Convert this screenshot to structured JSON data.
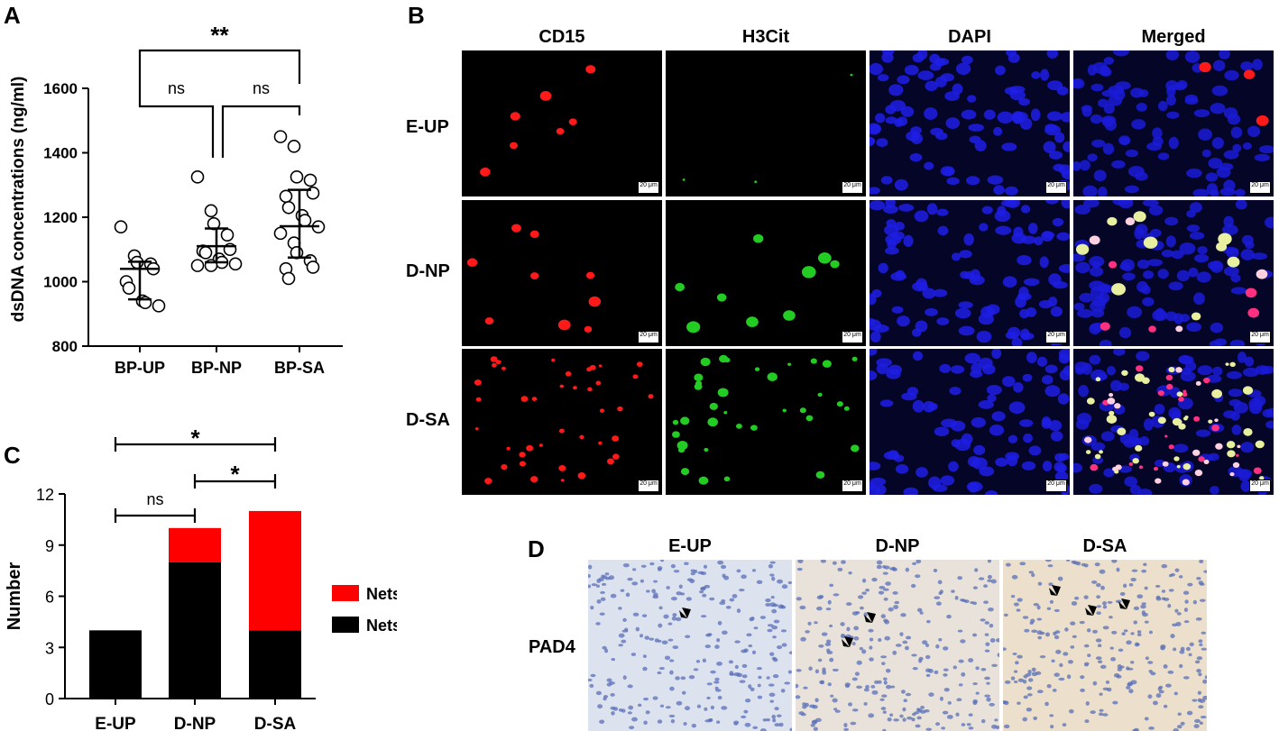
{
  "panels": {
    "A": "A",
    "B": "B",
    "C": "C",
    "D": "D"
  },
  "panelA": {
    "chart_data": {
      "type": "scatter",
      "categories": [
        "BP-UP",
        "BP-NP",
        "BP-SA"
      ],
      "ylabel": "dsDNA concentrations (ng/ml)",
      "ylim": [
        800,
        1700
      ],
      "yticks": [
        800,
        1000,
        1200,
        1400,
        1600
      ],
      "series": [
        {
          "category": "BP-UP",
          "values": [
            1170,
            1080,
            1060,
            1055,
            1040,
            1000,
            980,
            940,
            935,
            925
          ],
          "mean": 1040,
          "sd_low": 945,
          "sd_high": 1062
        },
        {
          "category": "BP-NP",
          "values": [
            1325,
            1220,
            1180,
            1145,
            1100,
            1095,
            1090,
            1070,
            1060,
            1055,
            1050,
            1050
          ],
          "mean": 1110,
          "sd_low": 1060,
          "sd_high": 1165
        },
        {
          "category": "BP-SA",
          "values": [
            1450,
            1420,
            1325,
            1315,
            1275,
            1265,
            1230,
            1205,
            1190,
            1170,
            1150,
            1120,
            1090,
            1065,
            1045,
            1040,
            1010
          ],
          "mean": 1172,
          "sd_low": 1075,
          "sd_high": 1285
        }
      ],
      "significance": [
        {
          "from": "BP-UP",
          "to": "BP-SA",
          "label": "**"
        },
        {
          "from": "BP-UP",
          "to": "BP-NP",
          "label": "ns"
        },
        {
          "from": "BP-NP",
          "to": "BP-SA",
          "label": "ns"
        }
      ]
    }
  },
  "panelB": {
    "columns": [
      "CD15",
      "H3Cit",
      "DAPI",
      "Merged"
    ],
    "rows": [
      "E-UP",
      "D-NP",
      "D-SA"
    ],
    "scale_label": "20 μm"
  },
  "panelC": {
    "chart_data": {
      "type": "bar",
      "categories": [
        "E-UP",
        "D-NP",
        "D-SA"
      ],
      "ylabel": "Number",
      "ylim": [
        0,
        12
      ],
      "yticks": [
        0,
        3,
        6,
        9,
        12
      ],
      "series": [
        {
          "name": "Nets (-)",
          "values": [
            4,
            8,
            4
          ],
          "color": "#000000"
        },
        {
          "name": "Nets (+)",
          "values": [
            0,
            2,
            7
          ],
          "color": "#ff0000"
        }
      ],
      "significance": [
        {
          "from": "E-UP",
          "to": "D-SA",
          "label": "*"
        },
        {
          "from": "D-NP",
          "to": "D-SA",
          "label": "*"
        },
        {
          "from": "E-UP",
          "to": "D-NP",
          "label": "ns"
        }
      ]
    }
  },
  "panelD": {
    "columns": [
      "E-UP",
      "D-NP",
      "D-SA"
    ],
    "row_label": "PAD4"
  }
}
